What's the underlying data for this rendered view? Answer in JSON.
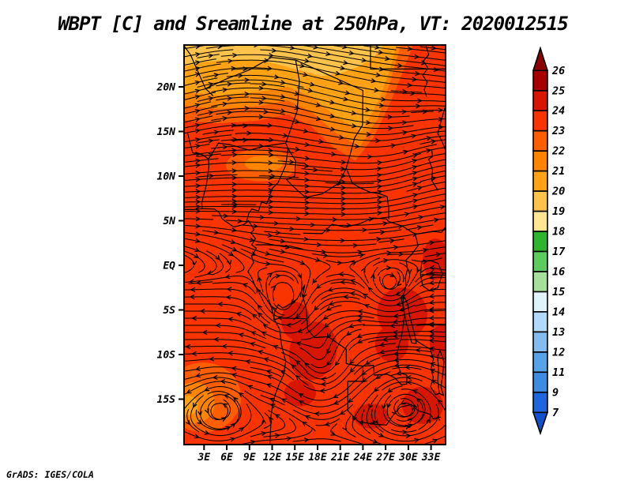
{
  "title": "WBPT [C] and Sreamline at 250hPa, VT: 2020012515",
  "attribution": "GrADS: IGES/COLA",
  "axes": {
    "lat_ticks": [
      {
        "label": "20N",
        "deg": 20
      },
      {
        "label": "15N",
        "deg": 15
      },
      {
        "label": "10N",
        "deg": 10
      },
      {
        "label": "5N",
        "deg": 5
      },
      {
        "label": "EQ",
        "deg": 0
      },
      {
        "label": "5S",
        "deg": -5
      },
      {
        "label": "10S",
        "deg": -10
      },
      {
        "label": "15S",
        "deg": -15
      }
    ],
    "lon_ticks": [
      {
        "label": "3E",
        "deg": 3
      },
      {
        "label": "6E",
        "deg": 6
      },
      {
        "label": "9E",
        "deg": 9
      },
      {
        "label": "12E",
        "deg": 12
      },
      {
        "label": "15E",
        "deg": 15
      },
      {
        "label": "18E",
        "deg": 18
      },
      {
        "label": "21E",
        "deg": 21
      },
      {
        "label": "24E",
        "deg": 24
      },
      {
        "label": "27E",
        "deg": 27
      },
      {
        "label": "30E",
        "deg": 30
      },
      {
        "label": "33E",
        "deg": 33
      }
    ]
  },
  "colorbar": {
    "labels": [
      "26",
      "25",
      "24",
      "23",
      "22",
      "21",
      "20",
      "19",
      "18",
      "17",
      "16",
      "15",
      "14",
      "13",
      "12",
      "11",
      "9",
      "7"
    ],
    "cell_colors": [
      "#a80000",
      "#d81600",
      "#f93400",
      "#fd5f00",
      "#ff8400",
      "#ffa216",
      "#ffc24a",
      "#ffe792",
      "#2eb42e",
      "#5ecb5e",
      "#a6df9c",
      "#e0f3fa",
      "#b2d9f7",
      "#84bcef",
      "#58a2e8",
      "#3d8ce2",
      "#1f65dc"
    ],
    "top_triangle_color": "#8b0000",
    "bottom_triangle_color": "#1150cb",
    "outline_color": "#000000"
  },
  "chart_data": {
    "type": "heatmap",
    "subtype": "filled-contour shading with streamline overlay (GrADS plot)",
    "title": "WBPT [C] and Sreamline at 250hPa, VT: 2020012515",
    "variable": "WBPT",
    "units": "C",
    "level": "250hPa",
    "valid_time": "2020012515",
    "region": "Africa, approx 0E-35E and 20S-25N",
    "x_axis": {
      "ticks": [
        "3E",
        "6E",
        "9E",
        "12E",
        "15E",
        "18E",
        "21E",
        "24E",
        "27E",
        "30E",
        "33E"
      ]
    },
    "y_axis": {
      "ticks": [
        "20N",
        "15N",
        "10N",
        "5N",
        "EQ",
        "5S",
        "10S",
        "15S"
      ]
    },
    "shading_boundaries": [
      26,
      25,
      24,
      23,
      22,
      21,
      20,
      19,
      18,
      17,
      16,
      15,
      14,
      13,
      12,
      11,
      9,
      7
    ],
    "shading_colors_top_to_bottom": [
      "#a80000",
      "#d81600",
      "#f93400",
      "#fd5f00",
      "#ff8400",
      "#ffa216",
      "#ffc24a",
      "#ffe792",
      "#2eb42e",
      "#5ecb5e",
      "#a6df9c",
      "#e0f3fa",
      "#b2d9f7",
      "#84bcef",
      "#58a2e8",
      "#3d8ce2",
      "#1f65dc"
    ],
    "field_summary": [
      {
        "area": "far north band 18N-25N",
        "wbpt_c": "19-22, lightest (19-20) along 22-24N, lighter colors extend diagonally down to ~12N in the northeast"
      },
      {
        "area": "main belt 15S-15N",
        "wbpt_c": "23-24 (dominant bright red)"
      },
      {
        "area": "south-central and eastern pockets (15-19E 6-15S, 27-31E 3-10S, 31-34E 14-17S)",
        "wbpt_c": "24-25 (darker red patches)"
      },
      {
        "area": "southwest swirl near 1-5E 13-17S and west-central 8-13E 10-12N",
        "wbpt_c": "21-23 (lighter orange)"
      }
    ],
    "streamlines": "dense black streamlines with small arrowheads: broad westerly arc across the north (crest near 9E), northeastward diagonal flow over the northeast, easterly flow near and just south of the equator, and several closed gyres between 2S and 17S (near 13E 5S, 18E 12S, 5E 15S, 29E 15S)",
    "grid": "off",
    "legend_position": "vertical colorbar at right"
  }
}
